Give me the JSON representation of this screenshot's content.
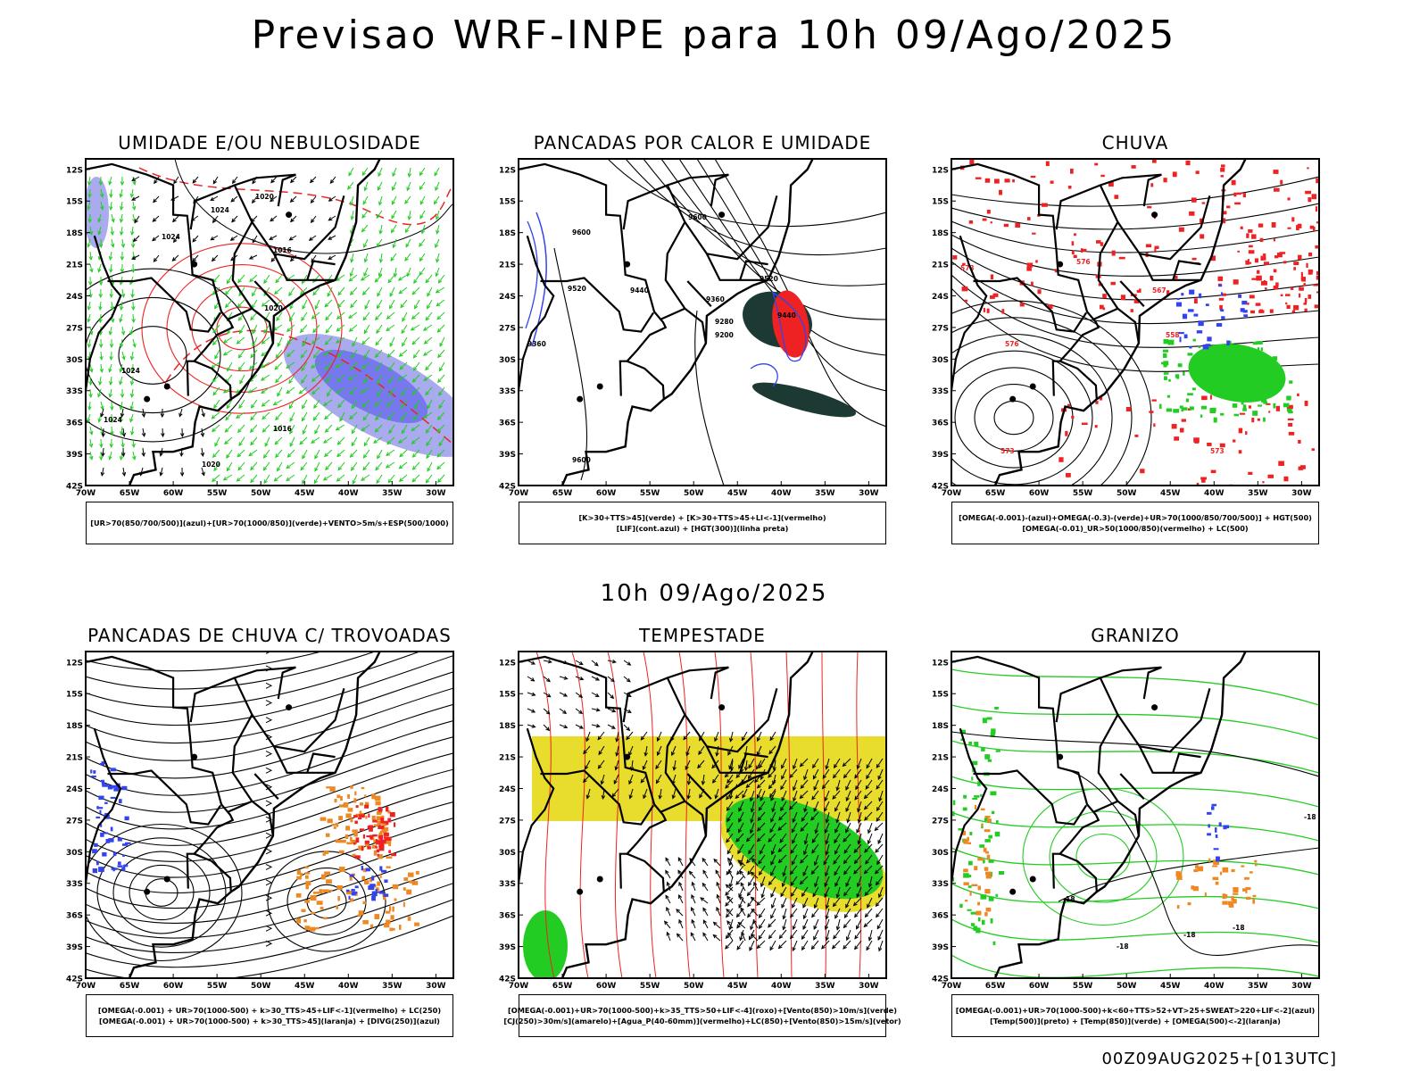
{
  "header": {
    "title": "Previsao WRF-INPE  para 10h 09/Ago/2025"
  },
  "mid_date": "10h 09/Ago/2025",
  "footer": {
    "stamp": "00Z09AUG2025+[013UTC]"
  },
  "axes": {
    "lat_labels": [
      "12S",
      "15S",
      "18S",
      "21S",
      "24S",
      "27S",
      "30S",
      "33S",
      "36S",
      "39S",
      "42S"
    ],
    "lon_labels": [
      "70W",
      "65W",
      "60W",
      "55W",
      "50W",
      "45W",
      "40W",
      "35W",
      "30W"
    ]
  },
  "colors": {
    "green": "#22cc22",
    "red": "#ee2222",
    "blue": "#3344ee",
    "lavender": "#aaaaee",
    "blue_shade": "#7777ee",
    "dark_green": "#1c3a33",
    "yellow": "#e8dc2c",
    "orange": "#ee8822",
    "dark_green2": "#118811"
  },
  "panels": [
    {
      "id": "umidade",
      "title": "UMIDADE E/OU NEBULOSIDADE",
      "legend": [
        "[UR>70(850/700/500)](azul)+[UR>70(1000/850)](verde)+VENTO>5m/s+ESP(500/1000)"
      ],
      "contour_labels": [
        "1020",
        "1024",
        "1016",
        "1024",
        "1020",
        "1016",
        "1024",
        "1020",
        "1024"
      ]
    },
    {
      "id": "pancadas-calor",
      "title": "PANCADAS POR CALOR E UMIDADE",
      "legend": [
        "[K>30+TTS>45](verde) + [K>30+TTS>45+LI<-1](vermelho)",
        "[LIF](cont.azul) + [HGT(300)](linha preta)"
      ],
      "contour_labels": [
        "9600",
        "9600",
        "9520",
        "9440",
        "9360",
        "9280",
        "9200",
        "9440",
        "9520",
        "9360",
        "9600"
      ]
    },
    {
      "id": "chuva",
      "title": "CHUVA",
      "legend": [
        "[OMEGA(-0.001)-(azul)+OMEGA(-0.3)-(verde)+UR>70(1000/850/700/500)] + HGT(500)",
        "[OMEGA(-0.01)_UR>50(1000/850)(vermelho) + LC(500)"
      ],
      "contour_labels": [
        "573",
        "576",
        "576",
        "567",
        "558",
        "573",
        "573"
      ]
    },
    {
      "id": "pancadas-trovoadas",
      "title": "PANCADAS DE CHUVA C/ TROVOADAS",
      "legend": [
        "[OMEGA(-0.001) + UR>70(1000-500) + k>30_TTS>45+LIF<-1](vermelho) + LC(250)",
        "[OMEGA(-0.001) + UR>70(1000-500) + k>30_TTS>45](laranja) + [DIVG(250)](azul)"
      ],
      "contour_labels": []
    },
    {
      "id": "tempestade",
      "title": "TEMPESTADE",
      "legend": [
        "[OMEGA(-0.001)+UR>70(1000-500)+k>35_TTS>50+LIF<-4](roxo)+[Vento(850)>10m/s](verde)",
        "[CJ(250)>30m/s](amarelo)+[Agua_P(40-60mm)](vermelho)+LC(850)+[Vento(850)>15m/s](vetor)"
      ],
      "contour_labels": []
    },
    {
      "id": "granizo",
      "title": "GRANIZO",
      "legend": [
        "[OMEGA(-0.001)+UR>70(1000-500)+k<60+TTS>52+VT>25+SWEAT>220+LIF<-2](azul)",
        "[Temp(500)](preto) + [Temp(850)](verde) + [OMEGA(500)<-2](laranja)"
      ],
      "contour_labels": [
        "-18",
        "-18",
        "-18",
        "-18",
        "-18"
      ]
    }
  ]
}
